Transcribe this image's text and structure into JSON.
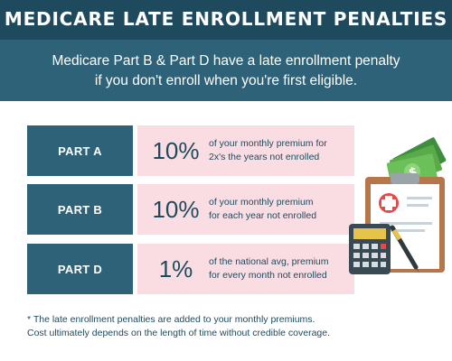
{
  "header": {
    "title": "MEDICARE LATE ENROLLMENT PENALTIES"
  },
  "intro": {
    "line1": "Medicare Part B & Part D have a late enrollment penalty",
    "line2": "if you don't enroll when you're first eligible."
  },
  "rows": [
    {
      "part": "PART A",
      "percent": "10%",
      "line1": "of your monthly premium for",
      "line2": "2x's the years not enrolled"
    },
    {
      "part": "PART B",
      "percent": "10%",
      "line1": "of your monthly premium",
      "line2": "for each year not enrolled"
    },
    {
      "part": "PART D",
      "percent": "1%",
      "line1": "of the national avg, premium",
      "line2": "for every month not enrolled"
    }
  ],
  "footnote": {
    "line1": "* The late enrollment penalties are added to your monthly premiums.",
    "line2": "Cost ultimately depends on the length of time without credible coverage."
  },
  "colors": {
    "header_dark": "#1f4a5e",
    "header_light": "#2e6279",
    "pink": "#f9dde2",
    "money_green": "#4a9a4a"
  },
  "icons": [
    "money-icon",
    "clipboard-icon",
    "medical-cross-icon",
    "calculator-icon",
    "pen-icon"
  ]
}
